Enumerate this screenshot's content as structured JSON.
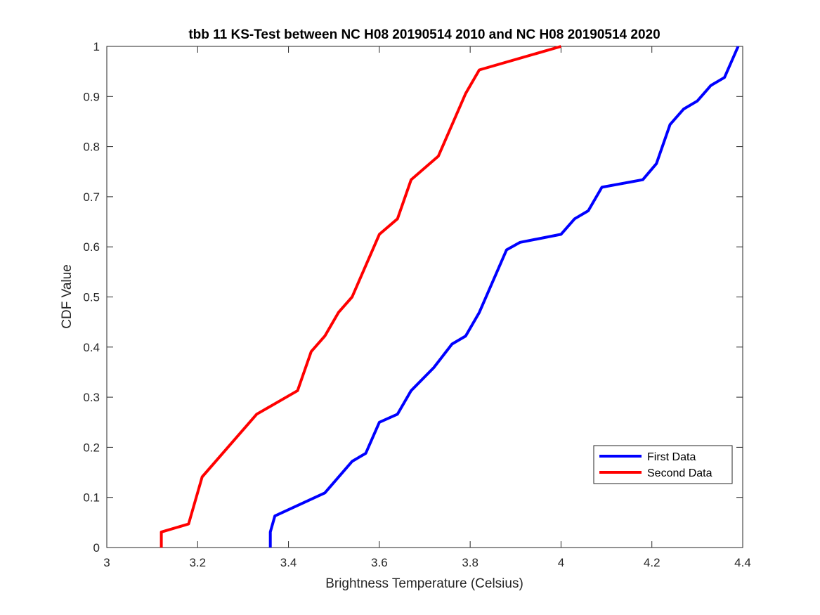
{
  "chart_data": {
    "type": "line",
    "title": "tbb 11 KS-Test between NC H08 20190514 2010 and NC H08 20190514 2020",
    "xlabel": "Brightness Temperature (Celsius)",
    "ylabel": "CDF Value",
    "xlim": [
      3,
      4.4
    ],
    "ylim": [
      0,
      1
    ],
    "xticks": [
      "3",
      "3.2",
      "3.4",
      "3.6",
      "3.8",
      "4",
      "4.2",
      "4.4"
    ],
    "yticks": [
      "0",
      "0.1",
      "0.2",
      "0.3",
      "0.4",
      "0.5",
      "0.6",
      "0.7",
      "0.8",
      "0.9",
      "1"
    ],
    "grid": false,
    "legend_position": "bottom-right",
    "series": [
      {
        "name": "First Data",
        "color": "#0000ff",
        "x": [
          3.36,
          3.36,
          3.37,
          3.48,
          3.54,
          3.57,
          3.6,
          3.64,
          3.67,
          3.72,
          3.76,
          3.79,
          3.82,
          3.88,
          3.91,
          4.0,
          4.03,
          4.06,
          4.09,
          4.18,
          4.21,
          4.24,
          4.27,
          4.3,
          4.33,
          4.36,
          4.39
        ],
        "y": [
          0,
          0.031,
          0.063,
          0.109,
          0.172,
          0.188,
          0.25,
          0.266,
          0.313,
          0.359,
          0.406,
          0.422,
          0.469,
          0.594,
          0.609,
          0.625,
          0.656,
          0.672,
          0.719,
          0.734,
          0.766,
          0.844,
          0.875,
          0.891,
          0.922,
          0.938,
          1.0
        ]
      },
      {
        "name": "Second Data",
        "color": "#ff0000",
        "x": [
          3.12,
          3.12,
          3.18,
          3.21,
          3.33,
          3.42,
          3.45,
          3.48,
          3.51,
          3.54,
          3.6,
          3.64,
          3.67,
          3.73,
          3.79,
          3.82,
          4.0
        ],
        "y": [
          0,
          0.031,
          0.047,
          0.141,
          0.266,
          0.313,
          0.391,
          0.422,
          0.469,
          0.5,
          0.625,
          0.656,
          0.734,
          0.781,
          0.906,
          0.953,
          1.0
        ]
      }
    ]
  }
}
